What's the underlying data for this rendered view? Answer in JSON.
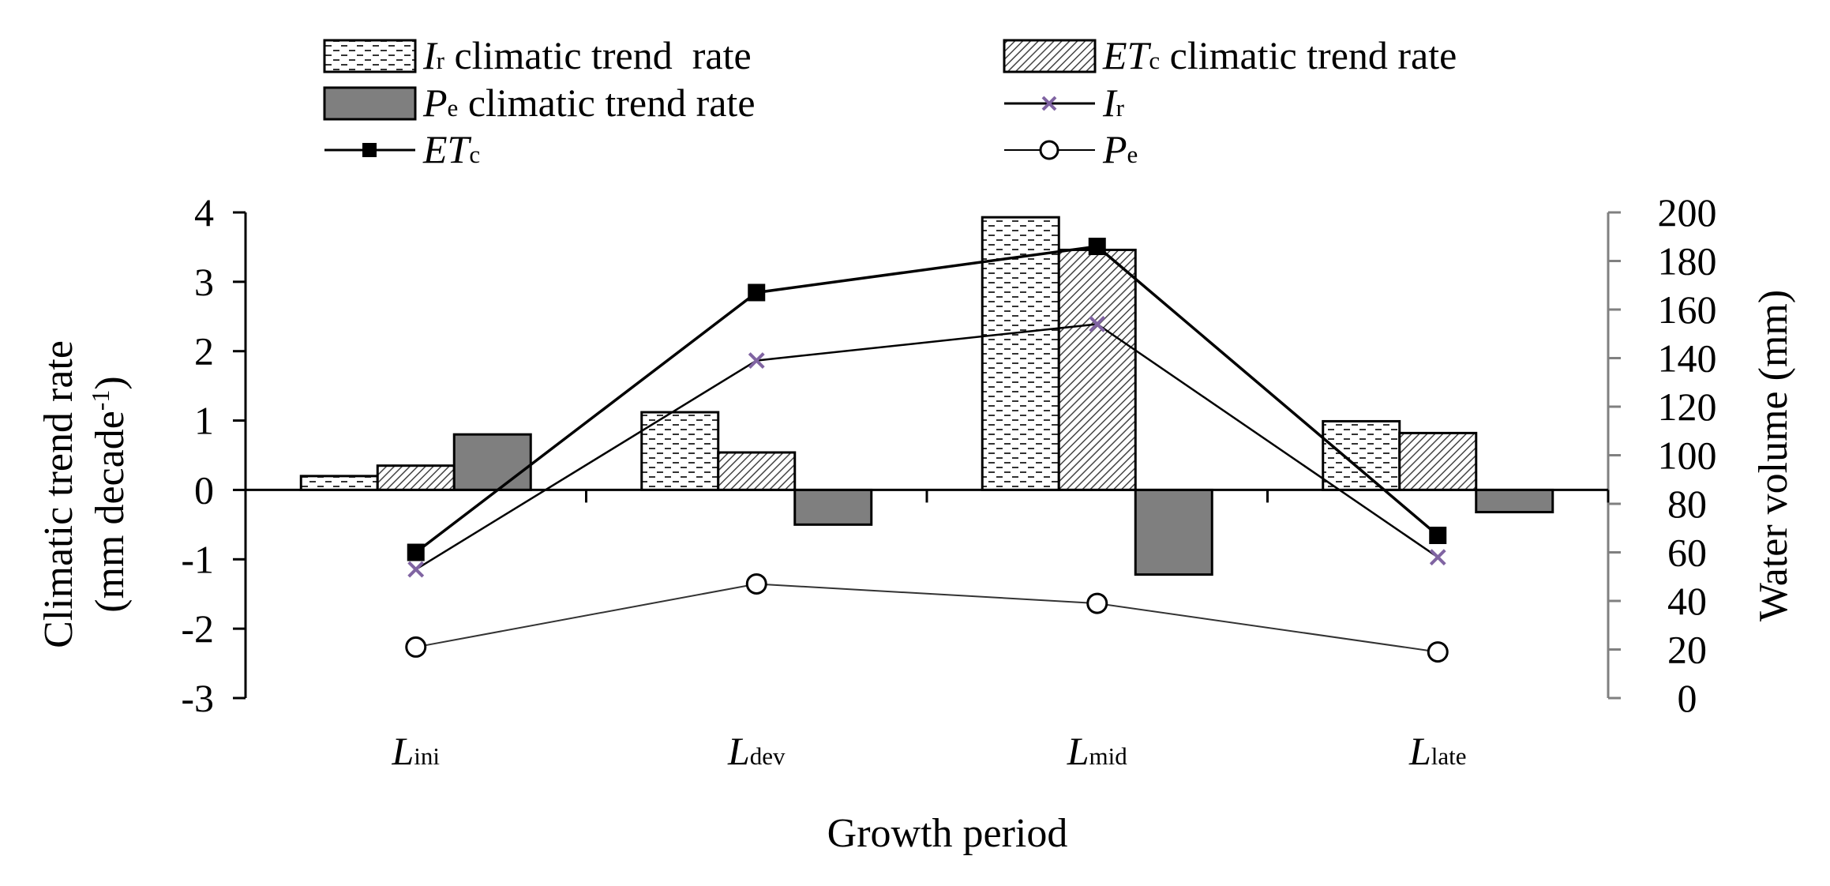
{
  "chart_data": {
    "type": "bar+line",
    "categories": [
      {
        "main": "L",
        "sub": "ini"
      },
      {
        "main": "L",
        "sub": "dev"
      },
      {
        "main": "L",
        "sub": "mid"
      },
      {
        "main": "L",
        "sub": "late"
      }
    ],
    "xlabel": "Growth period",
    "y_left": {
      "label_line1": "Climatic trend rate",
      "label_line2_pre": "(mm decade",
      "label_line2_sup": "-1",
      "label_line2_post": ")",
      "lim": [
        -3,
        4
      ],
      "ticks": [
        "4",
        "3",
        "2",
        "1",
        "0",
        "-1",
        "-2",
        "-3"
      ]
    },
    "y_right": {
      "label": "Water volume (mm)",
      "lim": [
        0,
        200
      ],
      "ticks": [
        "200",
        "180",
        "160",
        "140",
        "120",
        "100",
        "80",
        "60",
        "40",
        "20",
        "0"
      ]
    },
    "bar_series": [
      {
        "key": "ir_trend",
        "values": [
          0.2,
          1.12,
          3.93,
          0.99
        ]
      },
      {
        "key": "etc_trend",
        "values": [
          0.35,
          0.54,
          3.46,
          0.82
        ]
      },
      {
        "key": "pe_trend",
        "values": [
          0.8,
          -0.5,
          -1.22,
          -0.32
        ]
      }
    ],
    "line_series": [
      {
        "key": "etc",
        "values": [
          60,
          167,
          186,
          67
        ]
      },
      {
        "key": "ir",
        "values": [
          53,
          139,
          154,
          58
        ]
      },
      {
        "key": "pe",
        "values": [
          21,
          47,
          39,
          19
        ]
      }
    ],
    "legend": {
      "ir_trend": {
        "main": "I",
        "sub": "r",
        "text": " climatic trend  rate"
      },
      "etc_trend": {
        "main": "ET",
        "sub": "c",
        "text": " climatic trend rate"
      },
      "pe_trend": {
        "main": "P",
        "sub": "e",
        "text": " climatic trend rate"
      },
      "ir": {
        "main": "I",
        "sub": "r"
      },
      "etc": {
        "main": "ET",
        "sub": "c"
      },
      "pe": {
        "main": "P",
        "sub": "e"
      }
    },
    "colors": {
      "axis": "#000000",
      "pe_bar": "#7f7f7f",
      "ir_marker": "#8064a2",
      "line": "#000000"
    }
  }
}
